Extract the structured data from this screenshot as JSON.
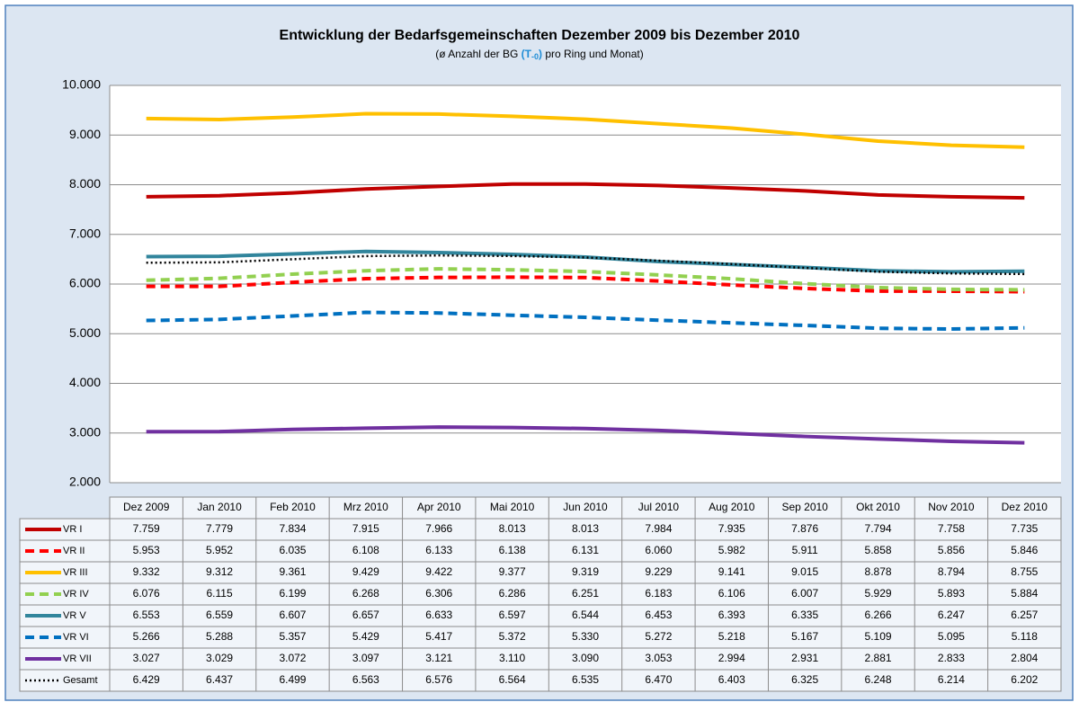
{
  "chart_data": {
    "type": "line",
    "title": "Entwicklung der Bedarfsgemeinschaften Dezember 2009 bis Dezember 2010",
    "subtitle": [
      "(ø Anzahl der BG",
      "(T",
      "-0",
      ")",
      "pro Ring und Monat)"
    ],
    "categories": [
      "Dez 2009",
      "Jan 2010",
      "Feb 2010",
      "Mrz 2010",
      "Apr 2010",
      "Mai 2010",
      "Jun 2010",
      "Jul 2010",
      "Aug 2010",
      "Sep 2010",
      "Okt 2010",
      "Nov 2010",
      "Dez 2010"
    ],
    "ylim": [
      2000,
      10000
    ],
    "yticks": [
      {
        "value": 2000,
        "label": "2.000"
      },
      {
        "value": 3000,
        "label": "3.000"
      },
      {
        "value": 4000,
        "label": "4.000"
      },
      {
        "value": 5000,
        "label": "5.000"
      },
      {
        "value": 6000,
        "label": "6.000"
      },
      {
        "value": 7000,
        "label": "7.000"
      },
      {
        "value": 8000,
        "label": "8.000"
      },
      {
        "value": 9000,
        "label": "9.000"
      },
      {
        "value": 10000,
        "label": "10.000"
      }
    ],
    "grid": true,
    "series": [
      {
        "name": "VR I",
        "color": "#c00000",
        "dash": "solid",
        "values": [
          7759,
          7779,
          7834,
          7915,
          7966,
          8013,
          8013,
          7984,
          7935,
          7876,
          7794,
          7758,
          7735
        ],
        "value_labels": [
          "7.759",
          "7.779",
          "7.834",
          "7.915",
          "7.966",
          "8.013",
          "8.013",
          "7.984",
          "7.935",
          "7.876",
          "7.794",
          "7.758",
          "7.735"
        ]
      },
      {
        "name": "VR II",
        "color": "#ff0000",
        "dash": "dashed",
        "values": [
          5953,
          5952,
          6035,
          6108,
          6133,
          6138,
          6131,
          6060,
          5982,
          5911,
          5858,
          5856,
          5846
        ],
        "value_labels": [
          "5.953",
          "5.952",
          "6.035",
          "6.108",
          "6.133",
          "6.138",
          "6.131",
          "6.060",
          "5.982",
          "5.911",
          "5.858",
          "5.856",
          "5.846"
        ]
      },
      {
        "name": "VR III",
        "color": "#ffc000",
        "dash": "solid",
        "values": [
          9332,
          9312,
          9361,
          9429,
          9422,
          9377,
          9319,
          9229,
          9141,
          9015,
          8878,
          8794,
          8755
        ],
        "value_labels": [
          "9.332",
          "9.312",
          "9.361",
          "9.429",
          "9.422",
          "9.377",
          "9.319",
          "9.229",
          "9.141",
          "9.015",
          "8.878",
          "8.794",
          "8.755"
        ]
      },
      {
        "name": "VR IV",
        "color": "#92d050",
        "dash": "dashed",
        "values": [
          6076,
          6115,
          6199,
          6268,
          6306,
          6286,
          6251,
          6183,
          6106,
          6007,
          5929,
          5893,
          5884
        ],
        "value_labels": [
          "6.076",
          "6.115",
          "6.199",
          "6.268",
          "6.306",
          "6.286",
          "6.251",
          "6.183",
          "6.106",
          "6.007",
          "5.929",
          "5.893",
          "5.884"
        ]
      },
      {
        "name": "VR V",
        "color": "#31859c",
        "dash": "solid",
        "values": [
          6553,
          6559,
          6607,
          6657,
          6633,
          6597,
          6544,
          6453,
          6393,
          6335,
          6266,
          6247,
          6257
        ],
        "value_labels": [
          "6.553",
          "6.559",
          "6.607",
          "6.657",
          "6.633",
          "6.597",
          "6.544",
          "6.453",
          "6.393",
          "6.335",
          "6.266",
          "6.247",
          "6.257"
        ]
      },
      {
        "name": "VR VI",
        "color": "#0070c0",
        "dash": "dashed",
        "values": [
          5266,
          5288,
          5357,
          5429,
          5417,
          5372,
          5330,
          5272,
          5218,
          5167,
          5109,
          5095,
          5118
        ],
        "value_labels": [
          "5.266",
          "5.288",
          "5.357",
          "5.429",
          "5.417",
          "5.372",
          "5.330",
          "5.272",
          "5.218",
          "5.167",
          "5.109",
          "5.095",
          "5.118"
        ]
      },
      {
        "name": "VR VII",
        "color": "#7030a0",
        "dash": "solid",
        "values": [
          3027,
          3029,
          3072,
          3097,
          3121,
          3110,
          3090,
          3053,
          2994,
          2931,
          2881,
          2833,
          2804
        ],
        "value_labels": [
          "3.027",
          "3.029",
          "3.072",
          "3.097",
          "3.121",
          "3.110",
          "3.090",
          "3.053",
          "2.994",
          "2.931",
          "2.881",
          "2.833",
          "2.804"
        ]
      },
      {
        "name": "Gesamt",
        "color": "#000000",
        "dash": "dotted",
        "values": [
          6429,
          6437,
          6499,
          6563,
          6576,
          6564,
          6535,
          6470,
          6403,
          6325,
          6248,
          6214,
          6202
        ],
        "value_labels": [
          "6.429",
          "6.437",
          "6.499",
          "6.563",
          "6.576",
          "6.564",
          "6.535",
          "6.470",
          "6.403",
          "6.325",
          "6.248",
          "6.214",
          "6.202"
        ]
      }
    ]
  }
}
